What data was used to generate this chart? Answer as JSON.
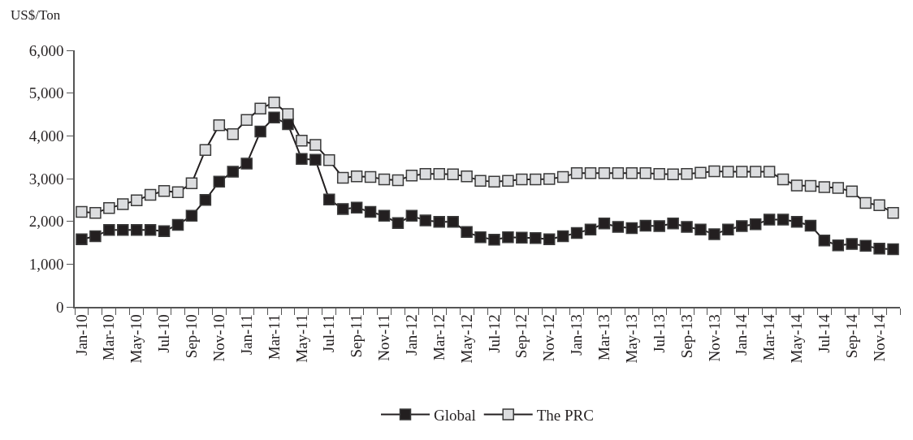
{
  "chart_data": {
    "type": "line",
    "ylabel": "US$/Ton",
    "categories": [
      "Jan-10",
      null,
      "Mar-10",
      null,
      "May-10",
      null,
      "Jul-10",
      null,
      "Sep-10",
      null,
      "Nov-10",
      null,
      "Jan-11",
      null,
      "Mar-11",
      null,
      "May-11",
      null,
      "Jul-11",
      null,
      "Sep-11",
      null,
      "Nov-11",
      null,
      "Jan-12",
      null,
      "Mar-12",
      null,
      "May-12",
      null,
      "Jul-12",
      null,
      "Sep-12",
      null,
      "Nov-12",
      null,
      "Jan-13",
      null,
      "Mar-13",
      null,
      "May-13",
      null,
      "Jul-13",
      null,
      "Sep-13",
      null,
      "Nov-13",
      null,
      "Jan-14",
      null,
      "Mar-14",
      null,
      "May-14",
      null,
      "Jul-14",
      null,
      "Sep-14",
      null,
      "Nov-14",
      null
    ],
    "series": [
      {
        "name": "Global",
        "color": "#231f20",
        "values": [
          1580,
          1650,
          1800,
          1800,
          1800,
          1800,
          1770,
          1920,
          2130,
          2500,
          2930,
          3160,
          3350,
          4100,
          4430,
          4270,
          3460,
          3440,
          2510,
          2290,
          2320,
          2220,
          2130,
          1960,
          2130,
          2020,
          1990,
          1990,
          1750,
          1630,
          1570,
          1630,
          1620,
          1610,
          1580,
          1650,
          1730,
          1810,
          1950,
          1870,
          1840,
          1900,
          1890,
          1950,
          1870,
          1810,
          1700,
          1810,
          1890,
          1930,
          2040,
          2040,
          1990,
          1900,
          1550,
          1440,
          1470,
          1430,
          1360,
          1350
        ]
      },
      {
        "name": "The PRC",
        "color": "#dcdddf",
        "values": [
          2220,
          2200,
          2310,
          2400,
          2490,
          2620,
          2710,
          2680,
          2890,
          3670,
          4250,
          4040,
          4370,
          4640,
          4780,
          4510,
          3890,
          3790,
          3430,
          3020,
          3050,
          3040,
          2980,
          2960,
          3070,
          3110,
          3110,
          3100,
          3050,
          2950,
          2930,
          2950,
          2980,
          2980,
          2990,
          3040,
          3130,
          3130,
          3130,
          3130,
          3130,
          3130,
          3110,
          3100,
          3110,
          3140,
          3170,
          3160,
          3160,
          3160,
          3160,
          2980,
          2840,
          2830,
          2800,
          2780,
          2700,
          2430,
          2380,
          2200
        ]
      }
    ],
    "ylim": [
      0,
      6000
    ],
    "yticks": [
      0,
      {
        "value": 1000,
        "label": "1,000"
      },
      {
        "value": 2000,
        "label": "2,000"
      },
      {
        "value": 3000,
        "label": "3,000"
      },
      {
        "value": 4000,
        "label": "4,000"
      },
      {
        "value": 5000,
        "label": "5,000"
      },
      {
        "value": 6000,
        "label": "6,000"
      }
    ],
    "marker": "square",
    "line_style": "solid",
    "legend": "bottom"
  }
}
